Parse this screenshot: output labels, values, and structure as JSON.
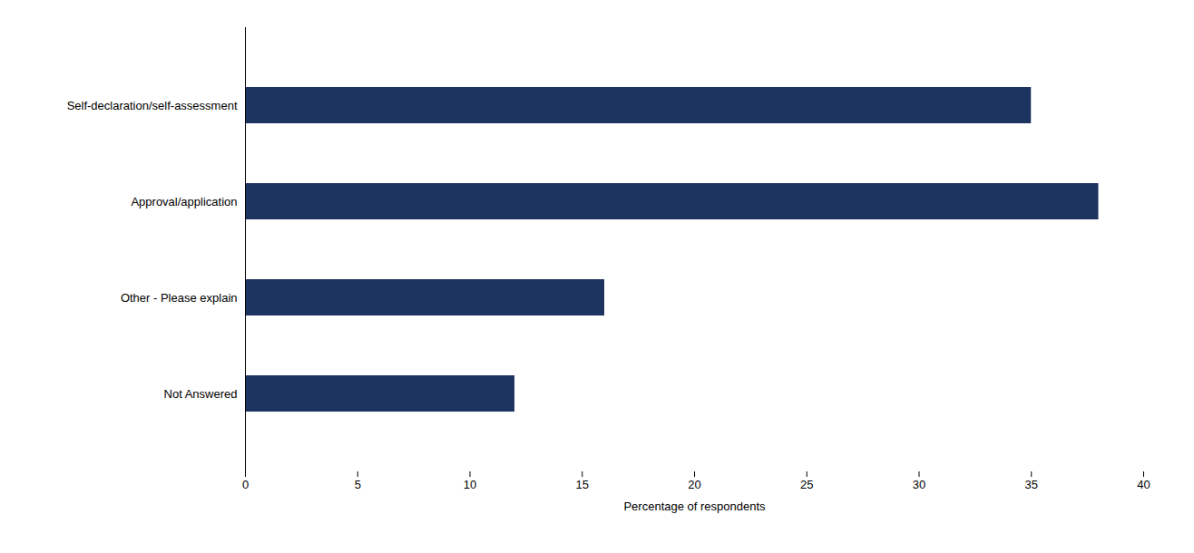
{
  "chart_data": {
    "type": "bar",
    "orientation": "horizontal",
    "categories": [
      "Not Answered",
      "Other - Please explain",
      "Approval/application",
      "Self-declaration/self-assessment"
    ],
    "values": [
      12,
      16,
      38,
      35
    ],
    "color": "#1d3461",
    "xlabel": "Percentage of respondents",
    "xlim": [
      0,
      40
    ],
    "xticks": [
      0,
      5,
      10,
      15,
      20,
      25,
      30,
      35,
      40
    ]
  }
}
